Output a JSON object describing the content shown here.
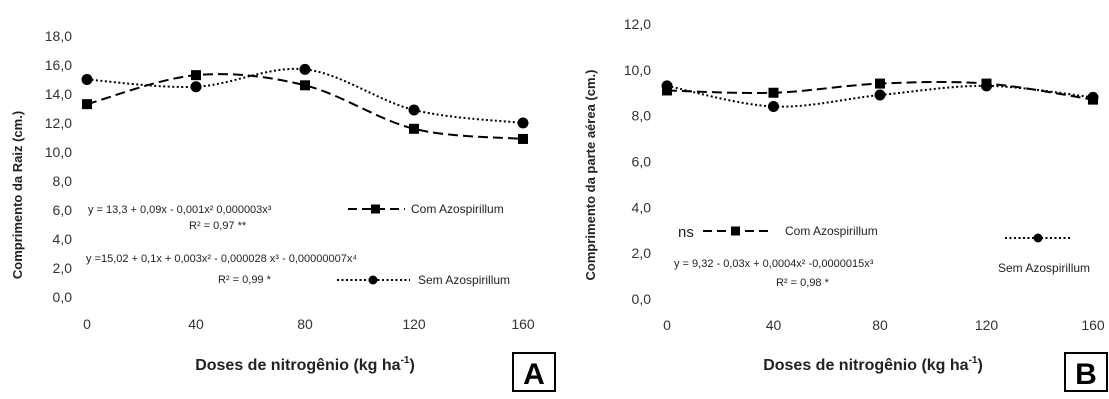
{
  "chart_data": [
    {
      "type": "line",
      "panel_label": "A",
      "ylabel": "Comprimento da Raiz  (cm.)",
      "xlabel": "Doses de nitrogênio (kg ha-1)",
      "xlabel_main": "Doses de nitrogênio (kg ha",
      "xlabel_sup": "-1",
      "xlabel_tail": ")",
      "x": [
        0,
        40,
        80,
        120,
        160
      ],
      "x_ticks": [
        "0",
        "40",
        "80",
        "120",
        "160"
      ],
      "y_ticks": [
        "0,0",
        "2,0",
        "4,0",
        "6,0",
        "8,0",
        "10,0",
        "12,0",
        "14,0",
        "16,0",
        "18,0"
      ],
      "ylim": [
        0,
        18
      ],
      "grid": false,
      "series": [
        {
          "name": "Com Azospirillum",
          "values": [
            13.3,
            15.3,
            14.6,
            11.6,
            10.9
          ],
          "marker": "square",
          "line": "dashed",
          "equation": "y = 13,3 + 0,09x - 0,001x² 0,000003x³",
          "r2": "R² = 0,97 **"
        },
        {
          "name": "Sem Azospirillum",
          "values": [
            15.0,
            14.5,
            15.7,
            12.9,
            12.0
          ],
          "marker": "circle",
          "line": "dotted",
          "equation": "y =15,02 + 0,1x + 0,003x² - 0,000028 x³ - 0,00000007x⁴",
          "r2": "R² = 0,99 *"
        }
      ]
    },
    {
      "type": "line",
      "panel_label": "B",
      "ylabel": "Comprimento da parte aérea (cm.)",
      "xlabel": "Doses de nitrogênio (kg ha-1)",
      "xlabel_main": "Doses de nitrogênio (kg ha",
      "xlabel_sup": "-1",
      "xlabel_tail": ")",
      "x": [
        0,
        40,
        80,
        120,
        160
      ],
      "x_ticks": [
        "0",
        "40",
        "80",
        "120",
        "160"
      ],
      "y_ticks": [
        "0,0",
        "2,0",
        "4,0",
        "6,0",
        "8,0",
        "10,0",
        "12,0"
      ],
      "ylim": [
        0,
        12
      ],
      "grid": false,
      "series": [
        {
          "name": "Com Azospirillum",
          "values": [
            9.1,
            9.0,
            9.4,
            9.4,
            8.7
          ],
          "marker": "square",
          "line": "dashed",
          "prefix": "ns"
        },
        {
          "name": "Sem Azospirillum",
          "values": [
            9.3,
            8.4,
            8.9,
            9.3,
            8.8
          ],
          "marker": "circle",
          "line": "dotted",
          "equation": "y = 9,32 - 0,03x + 0,0004x² -0,0000015x³",
          "r2": "R² = 0,98 *"
        }
      ]
    }
  ]
}
